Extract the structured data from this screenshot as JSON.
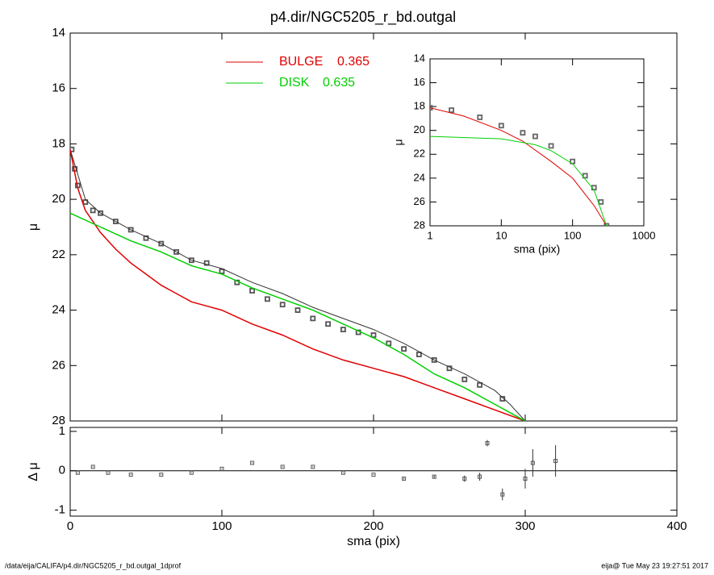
{
  "title": "p4.dir/NGC5205_r_bd.outgal",
  "footer": {
    "left": "/data/eija/CALIFA/p4.dir/NGC5205_r_bd.outgal_1dprof",
    "right": "eija@  Tue May 23 19:27:51 2017"
  },
  "chart_data": [
    {
      "type": "line",
      "ylabel": "μ",
      "xlim": [
        0,
        400
      ],
      "xticks": [
        0,
        100,
        200,
        300,
        400
      ],
      "xtick_labels": false,
      "ylim": [
        28,
        14
      ],
      "yticks": [
        14,
        16,
        18,
        20,
        22,
        24,
        26,
        28
      ],
      "series": [
        {
          "marker": "square",
          "color": "#555555",
          "x": [
            1,
            3,
            5,
            10,
            15,
            20,
            30,
            40,
            50,
            60,
            70,
            80,
            90,
            100,
            110,
            120,
            130,
            140,
            150,
            160,
            170,
            180,
            190,
            200,
            210,
            220,
            230,
            240,
            250,
            260,
            270,
            285
          ],
          "values": [
            18.2,
            18.9,
            19.5,
            20.1,
            20.4,
            20.5,
            20.8,
            21.1,
            21.4,
            21.6,
            21.9,
            22.2,
            22.3,
            22.6,
            23.0,
            23.3,
            23.6,
            23.8,
            24.0,
            24.3,
            24.5,
            24.7,
            24.8,
            24.9,
            25.2,
            25.4,
            25.6,
            25.8,
            26.1,
            26.5,
            26.7,
            27.2
          ]
        },
        {
          "color": "#333333",
          "width": 1,
          "x": [
            0,
            10,
            20,
            40,
            60,
            80,
            100,
            120,
            140,
            160,
            180,
            200,
            220,
            240,
            260,
            280,
            290,
            300
          ],
          "values": [
            18.2,
            20.0,
            20.5,
            21.1,
            21.6,
            22.2,
            22.5,
            23.0,
            23.4,
            23.9,
            24.3,
            24.7,
            25.2,
            25.8,
            26.3,
            26.9,
            27.4,
            28.0
          ]
        },
        {
          "name": "BULGE",
          "fraction": 0.365,
          "color": "#e00000",
          "width": 1.5,
          "x": [
            0,
            5,
            10,
            20,
            30,
            40,
            50,
            60,
            70,
            80,
            100,
            120,
            140,
            160,
            180,
            200,
            220,
            240,
            260,
            280,
            300
          ],
          "values": [
            18.2,
            19.6,
            20.4,
            21.2,
            21.8,
            22.3,
            22.7,
            23.1,
            23.4,
            23.7,
            24.0,
            24.5,
            24.9,
            25.4,
            25.8,
            26.1,
            26.4,
            26.8,
            27.2,
            27.6,
            28.0
          ]
        },
        {
          "name": "DISK",
          "fraction": 0.635,
          "color": "#00d000",
          "width": 1.5,
          "x": [
            0,
            20,
            40,
            60,
            80,
            100,
            120,
            140,
            160,
            180,
            200,
            220,
            240,
            260,
            280,
            300
          ],
          "values": [
            20.5,
            21.0,
            21.5,
            21.9,
            22.4,
            22.7,
            23.2,
            23.6,
            24.0,
            24.5,
            25.0,
            25.6,
            26.3,
            26.8,
            27.4,
            28.0
          ]
        }
      ]
    },
    {
      "type": "scatter",
      "xlabel": "sma (pix)",
      "ylabel": "Δ μ",
      "xlim": [
        0,
        400
      ],
      "xticks": [
        0,
        100,
        200,
        300,
        400
      ],
      "ylim": [
        -1.15,
        1.1
      ],
      "yticks": [
        -1,
        0,
        1
      ],
      "hline": 0,
      "series": [
        {
          "marker": "square",
          "color": "#555555",
          "x": [
            5,
            15,
            25,
            40,
            60,
            80,
            100,
            120,
            140,
            160,
            180,
            200,
            220,
            240,
            260,
            270,
            275,
            285,
            300,
            305,
            320
          ],
          "values": [
            -0.05,
            0.1,
            -0.05,
            -0.1,
            -0.1,
            -0.05,
            0.05,
            0.2,
            0.1,
            0.1,
            -0.05,
            -0.1,
            -0.2,
            -0.15,
            -0.2,
            -0.15,
            0.7,
            -0.6,
            -0.2,
            0.2,
            0.25
          ],
          "errors": [
            0.01,
            0.01,
            0.01,
            0.01,
            0.01,
            0.01,
            0.01,
            0.01,
            0.01,
            0.01,
            0.01,
            0.01,
            0.02,
            0.03,
            0.08,
            0.1,
            0.08,
            0.15,
            0.25,
            0.35,
            0.4
          ]
        }
      ]
    },
    {
      "type": "line",
      "xlabel": "sma (pix)",
      "ylabel": "μ",
      "xlog": true,
      "xlim": [
        1,
        1000
      ],
      "xticks": [
        1,
        10,
        100,
        1000
      ],
      "ylim": [
        28,
        14
      ],
      "yticks": [
        14,
        16,
        18,
        20,
        22,
        24,
        26,
        28
      ],
      "series": [
        {
          "marker": "square",
          "color": "#666666",
          "x": [
            1,
            2,
            5,
            10,
            20,
            30,
            50,
            100,
            150,
            200,
            250,
            300
          ],
          "values": [
            18.1,
            18.3,
            18.9,
            19.6,
            20.2,
            20.5,
            21.3,
            22.6,
            23.8,
            24.8,
            26.0,
            28.0
          ]
        },
        {
          "color": "#e00000",
          "width": 1,
          "x": [
            1,
            3,
            10,
            20,
            50,
            100,
            200,
            300
          ],
          "values": [
            18.1,
            18.8,
            20.0,
            20.9,
            22.6,
            24.0,
            26.3,
            28.0
          ]
        },
        {
          "color": "#00d000",
          "width": 1,
          "x": [
            1,
            10,
            30,
            50,
            100,
            200,
            300
          ],
          "values": [
            20.5,
            20.7,
            21.2,
            21.7,
            22.8,
            25.0,
            28.0
          ]
        }
      ]
    }
  ]
}
